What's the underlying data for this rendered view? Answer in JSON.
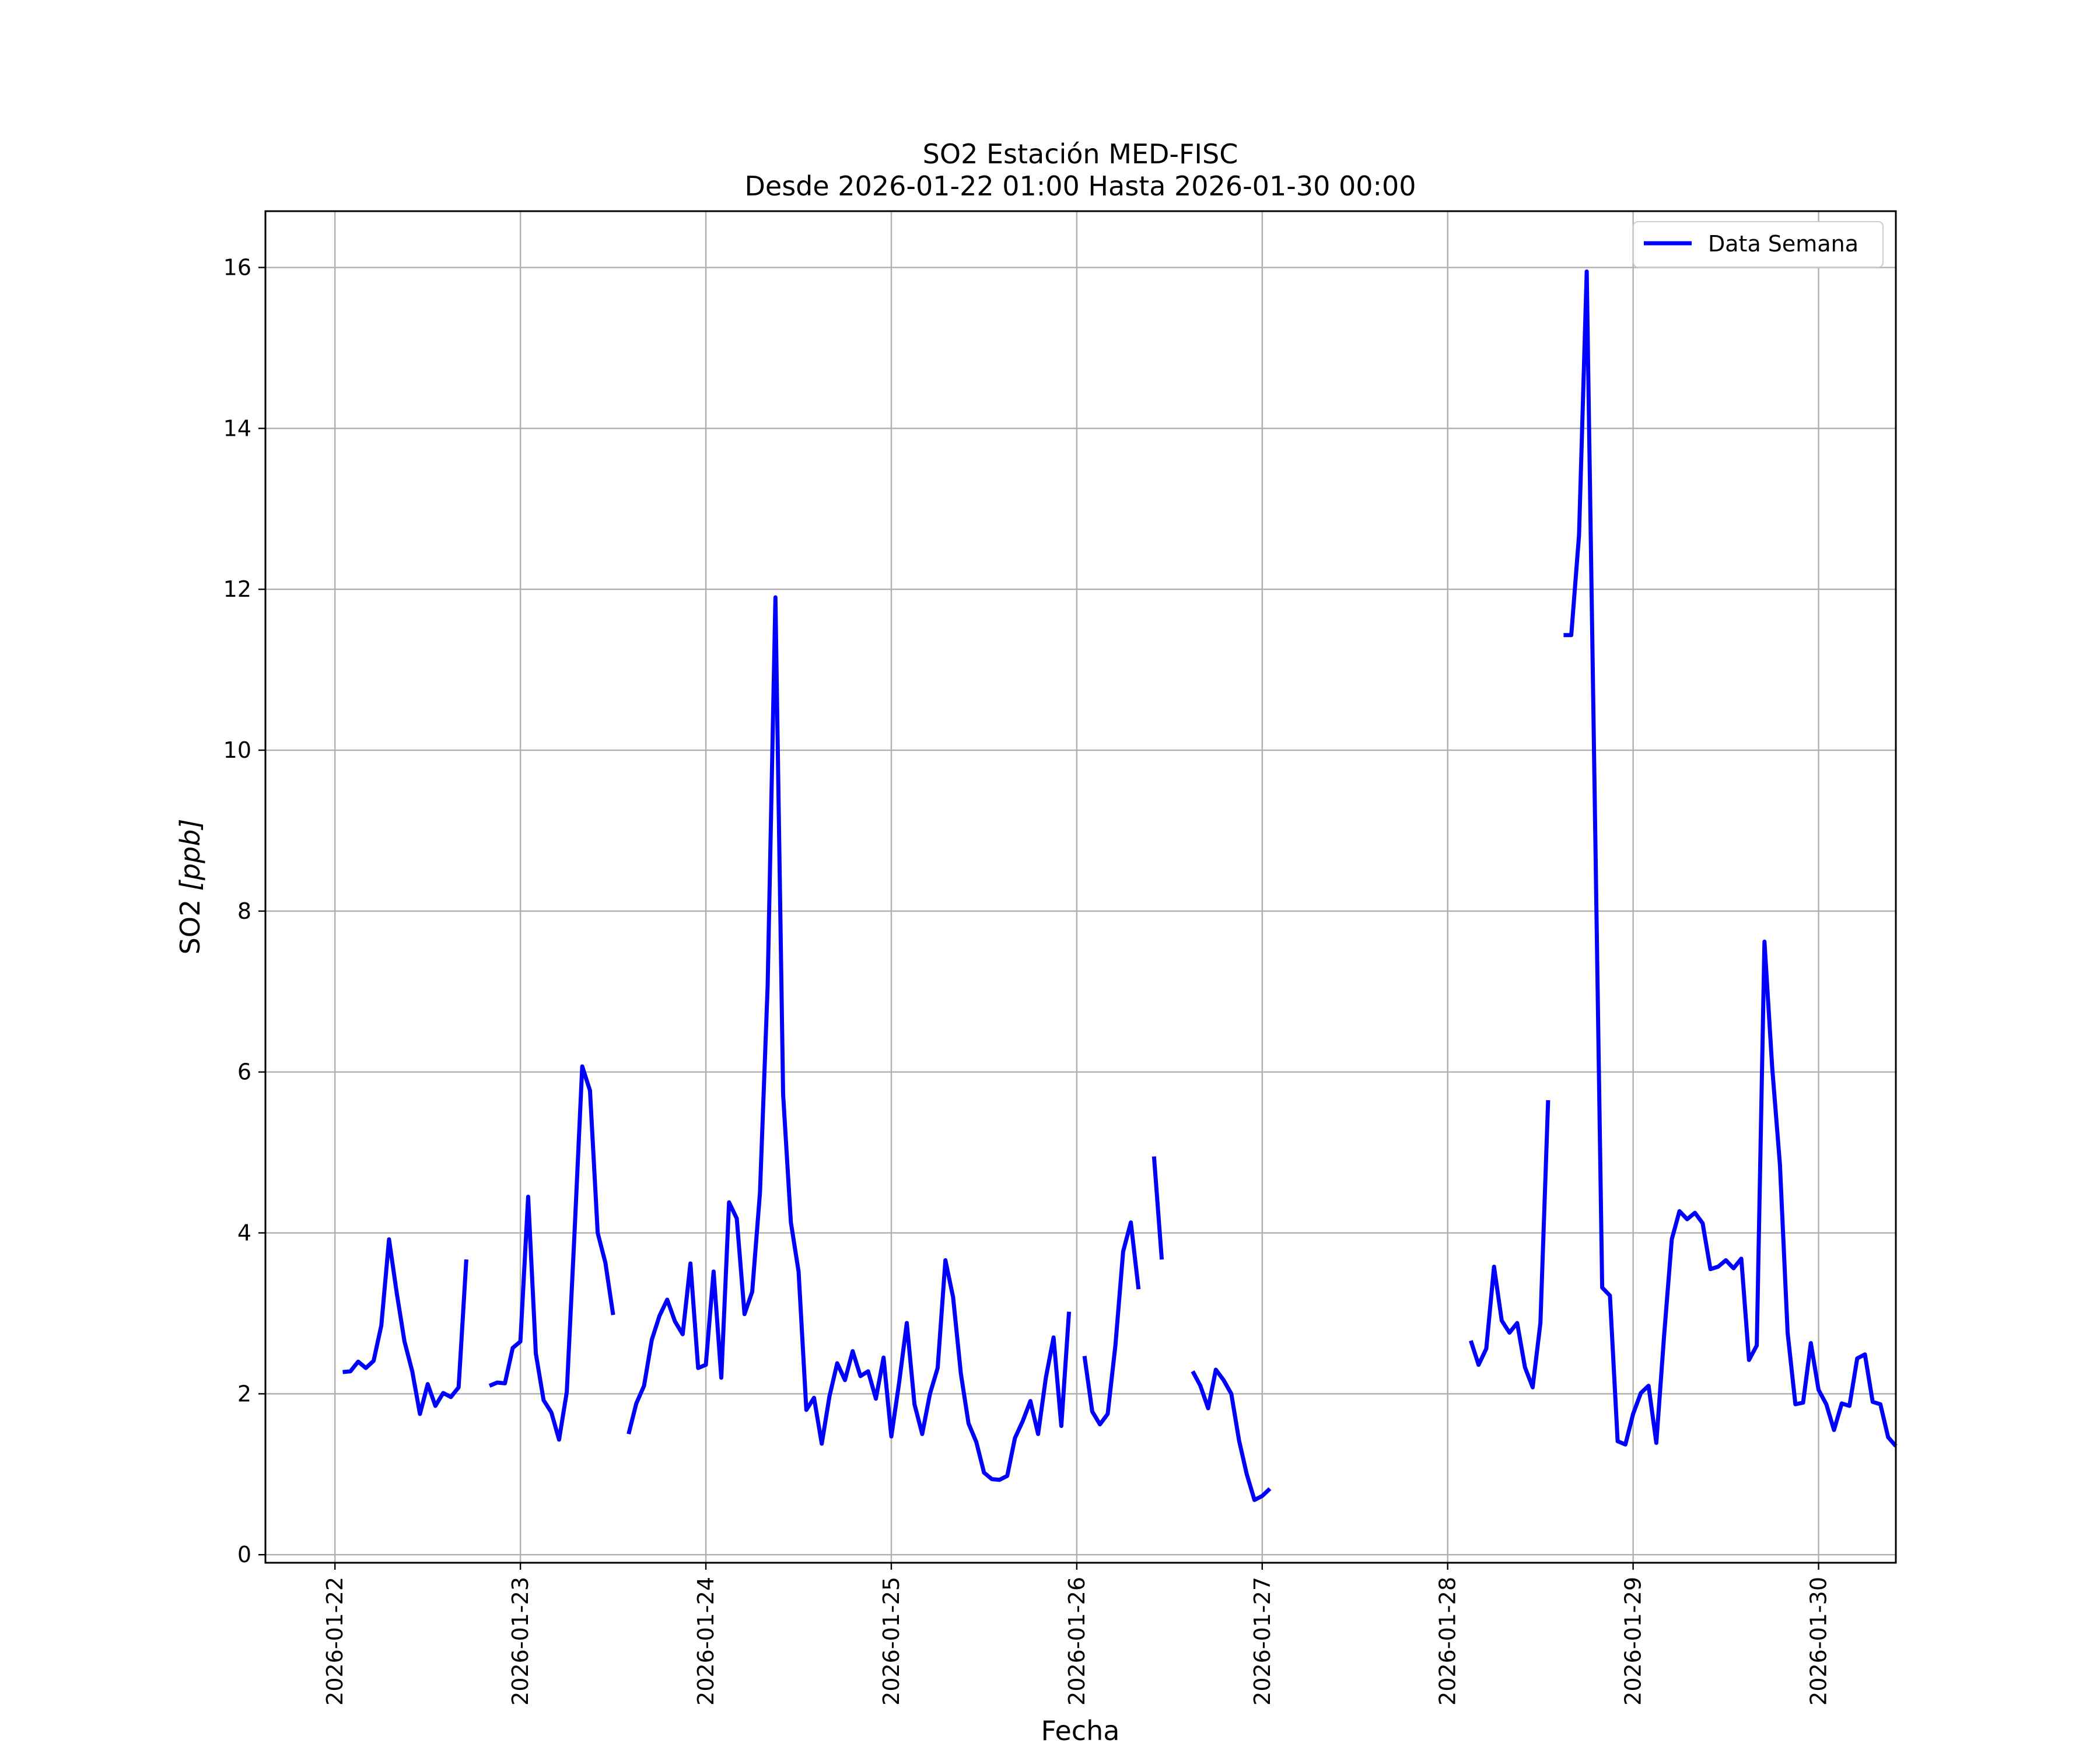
{
  "chart_data": {
    "type": "line",
    "title": "SO2 Estación MED-FISC",
    "subtitle": "Desde 2026-01-22 01:00 Hasta 2026-01-30 00:00",
    "xlabel": "Fecha",
    "ylabel_main": "SO2 ",
    "ylabel_unit": "[ppb]",
    "xlim": [
      "2026-01-21 15:00",
      "2026-01-30 10:00"
    ],
    "ylim": [
      -0.1,
      16.7
    ],
    "x_ticks": [
      "2026-01-22",
      "2026-01-23",
      "2026-01-24",
      "2026-01-25",
      "2026-01-26",
      "2026-01-27",
      "2026-01-28",
      "2026-01-29",
      "2026-01-30"
    ],
    "y_ticks": [
      0,
      2,
      4,
      6,
      8,
      10,
      12,
      14,
      16
    ],
    "grid": true,
    "legend_position": "top-right",
    "color": "#0000ff",
    "series": [
      {
        "name": "Data Semana",
        "start": "2026-01-22 01:00",
        "step_hours": 1,
        "values": [
          2.27,
          2.28,
          2.4,
          2.32,
          2.41,
          2.85,
          3.92,
          3.25,
          2.65,
          2.28,
          1.75,
          2.12,
          1.85,
          2.01,
          1.96,
          2.08,
          3.67,
          null,
          null,
          2.1,
          2.14,
          2.13,
          2.57,
          2.65,
          4.45,
          2.5,
          1.92,
          1.77,
          1.43,
          2.02,
          4.0,
          6.07,
          5.77,
          4.0,
          3.63,
          2.98,
          null,
          1.5,
          1.88,
          2.1,
          2.67,
          2.97,
          3.17,
          2.9,
          2.74,
          3.62,
          2.32,
          2.36,
          3.52,
          2.2,
          4.38,
          4.18,
          2.99,
          3.27,
          4.5,
          7.08,
          11.9,
          5.72,
          4.13,
          3.52,
          1.8,
          1.95,
          1.38,
          1.97,
          2.38,
          2.17,
          2.53,
          2.22,
          2.28,
          1.94,
          2.45,
          1.47,
          2.13,
          2.88,
          1.87,
          1.5,
          2.0,
          2.32,
          3.66,
          3.2,
          2.25,
          1.63,
          1.4,
          1.02,
          0.94,
          0.93,
          0.98,
          1.45,
          1.66,
          1.91,
          1.5,
          2.2,
          2.7,
          1.6,
          3.02,
          null,
          2.47,
          1.78,
          1.62,
          1.75,
          2.6,
          3.77,
          4.13,
          3.3,
          null,
          4.95,
          3.67,
          null,
          null,
          null,
          2.28,
          2.1,
          1.82,
          2.3,
          2.17,
          2.0,
          1.42,
          1.0,
          0.68,
          0.73,
          0.82,
          null,
          null,
          null,
          null,
          null,
          null,
          null,
          null,
          null,
          null,
          null,
          null,
          null,
          null,
          null,
          null,
          null,
          null,
          null,
          null,
          null,
          null,
          null,
          null,
          null,
          2.66,
          2.36,
          2.56,
          3.58,
          2.91,
          2.76,
          2.88,
          2.33,
          2.08,
          2.88,
          5.65,
          null,
          11.43,
          11.43,
          12.67,
          15.95,
          9.6,
          3.32,
          3.22,
          1.41,
          1.37,
          1.75,
          2.01,
          2.1,
          1.39,
          2.71,
          3.92,
          4.27,
          4.17,
          4.25,
          4.12,
          3.55,
          3.58,
          3.66,
          3.56,
          3.68,
          2.42,
          2.6,
          7.62,
          6.05,
          4.85,
          2.76,
          1.87,
          1.89,
          2.63,
          2.05,
          1.87,
          1.55,
          1.88,
          1.85,
          2.44,
          2.49,
          1.9,
          1.87,
          1.46,
          1.35
        ]
      }
    ]
  }
}
